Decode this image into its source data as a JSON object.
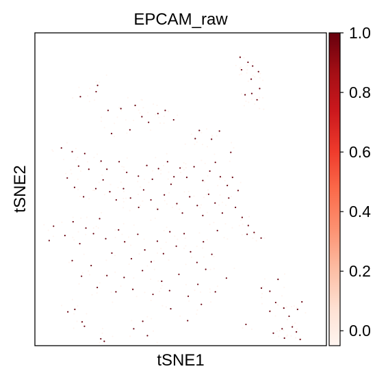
{
  "chart_data": {
    "type": "scatter",
    "title": "EPCAM_raw",
    "xlabel": "tSNE1",
    "ylabel": "tSNE2",
    "xlim": [
      0,
      100
    ],
    "ylim": [
      0,
      100
    ],
    "xticks_shown": false,
    "yticks_shown": false,
    "grid": false,
    "colorbar": {
      "cmap": "Reds",
      "range": [
        -0.05,
        1.0
      ],
      "ticks": [
        0.0,
        0.2,
        0.4,
        0.6,
        0.8,
        1.0
      ],
      "tick_labels": [
        "0.0",
        "0.2",
        "0.4",
        "0.6",
        "0.8",
        "1.0"
      ],
      "position": "right"
    },
    "low_value_color": "#fff5f0",
    "high_value_color": "#67000d",
    "expressing_cells": {
      "value": 1.0,
      "points": [
        [
          70.4,
          92.2
        ],
        [
          73.1,
          90.6
        ],
        [
          70.9,
          88.2
        ],
        [
          74.7,
          89.4
        ],
        [
          76.7,
          87.6
        ],
        [
          74.2,
          85.2
        ],
        [
          77.1,
          82.2
        ],
        [
          74.4,
          80.6
        ],
        [
          72.1,
          80.2
        ],
        [
          76.2,
          78.6
        ],
        [
          21.0,
          81.2
        ],
        [
          21.5,
          83.2
        ],
        [
          15.6,
          79.6
        ],
        [
          25.1,
          75.2
        ],
        [
          29.5,
          75.8
        ],
        [
          34.4,
          76.8
        ],
        [
          36.7,
          73.2
        ],
        [
          44.7,
          75.2
        ],
        [
          42.2,
          74.2
        ],
        [
          26.3,
          67.8
        ],
        [
          32.6,
          69.0
        ],
        [
          39.0,
          71.4
        ],
        [
          47.6,
          72.2
        ],
        [
          55.0,
          66.2
        ],
        [
          56.4,
          68.8
        ],
        [
          60.6,
          66.0
        ],
        [
          63.3,
          68.6
        ],
        [
          67.2,
          61.8
        ],
        [
          9.1,
          63.2
        ],
        [
          12.8,
          62.0
        ],
        [
          17.1,
          61.4
        ],
        [
          15.0,
          57.4
        ],
        [
          18.5,
          56.4
        ],
        [
          22.7,
          59.0
        ],
        [
          24.7,
          56.4
        ],
        [
          28.9,
          58.8
        ],
        [
          31.5,
          55.4
        ],
        [
          35.5,
          54.2
        ],
        [
          38.4,
          57.6
        ],
        [
          42.4,
          56.6
        ],
        [
          45.5,
          58.8
        ],
        [
          40.3,
          53.2
        ],
        [
          47.7,
          54.0
        ],
        [
          49.8,
          56.8
        ],
        [
          52.1,
          53.8
        ],
        [
          54.6,
          57.2
        ],
        [
          57.6,
          52.8
        ],
        [
          60.0,
          55.8
        ],
        [
          61.9,
          58.6
        ],
        [
          63.6,
          54.0
        ],
        [
          66.0,
          51.2
        ],
        [
          67.8,
          53.8
        ],
        [
          69.7,
          49.6
        ],
        [
          11.1,
          53.6
        ],
        [
          13.6,
          50.6
        ],
        [
          16.7,
          47.6
        ],
        [
          20.9,
          50.2
        ],
        [
          23.4,
          53.0
        ],
        [
          25.7,
          49.2
        ],
        [
          27.9,
          46.6
        ],
        [
          30.4,
          50.2
        ],
        [
          32.8,
          47.2
        ],
        [
          35.6,
          44.2
        ],
        [
          37.3,
          49.8
        ],
        [
          39.8,
          46.6
        ],
        [
          42.1,
          43.6
        ],
        [
          44.4,
          48.2
        ],
        [
          46.7,
          51.6
        ],
        [
          48.7,
          45.4
        ],
        [
          50.6,
          42.4
        ],
        [
          53.1,
          47.6
        ],
        [
          55.7,
          44.8
        ],
        [
          57.6,
          41.6
        ],
        [
          59.6,
          48.4
        ],
        [
          61.8,
          45.6
        ],
        [
          64.3,
          42.4
        ],
        [
          66.5,
          47.2
        ],
        [
          68.8,
          44.2
        ],
        [
          71.1,
          41.0
        ],
        [
          73.2,
          38.4
        ],
        [
          75.2,
          36.2
        ],
        [
          72.8,
          35.6
        ],
        [
          77.6,
          34.4
        ],
        [
          6.4,
          38.2
        ],
        [
          4.9,
          33.6
        ],
        [
          10.3,
          35.2
        ],
        [
          13.1,
          39.6
        ],
        [
          15.4,
          32.6
        ],
        [
          17.5,
          37.6
        ],
        [
          20.1,
          35.8
        ],
        [
          22.2,
          40.6
        ],
        [
          24.3,
          34.2
        ],
        [
          26.4,
          29.6
        ],
        [
          28.7,
          37.0
        ],
        [
          30.8,
          33.2
        ],
        [
          33.1,
          27.8
        ],
        [
          35.3,
          35.6
        ],
        [
          37.7,
          30.6
        ],
        [
          39.9,
          26.8
        ],
        [
          42.0,
          33.4
        ],
        [
          44.1,
          29.4
        ],
        [
          46.3,
          36.4
        ],
        [
          48.5,
          31.8
        ],
        [
          51.2,
          35.8
        ],
        [
          53.4,
          30.0
        ],
        [
          55.6,
          26.6
        ],
        [
          57.8,
          33.2
        ],
        [
          60.7,
          29.2
        ],
        [
          62.6,
          36.8
        ],
        [
          12.8,
          27.2
        ],
        [
          16.0,
          22.2
        ],
        [
          19.3,
          25.6
        ],
        [
          21.4,
          18.6
        ],
        [
          24.7,
          22.4
        ],
        [
          27.8,
          17.2
        ],
        [
          30.6,
          21.8
        ],
        [
          33.6,
          18.0
        ],
        [
          36.9,
          24.0
        ],
        [
          40.5,
          16.4
        ],
        [
          43.5,
          20.6
        ],
        [
          46.2,
          17.6
        ],
        [
          49.4,
          22.8
        ],
        [
          52.6,
          15.8
        ],
        [
          55.9,
          19.6
        ],
        [
          58.6,
          24.4
        ],
        [
          61.9,
          17.2
        ],
        [
          65.7,
          21.6
        ],
        [
          13.7,
          11.6
        ],
        [
          11.3,
          10.8
        ],
        [
          16.2,
          7.6
        ],
        [
          17.0,
          6.2
        ],
        [
          22.6,
          2.2
        ],
        [
          23.8,
          1.4
        ],
        [
          33.9,
          5.4
        ],
        [
          37.0,
          7.8
        ],
        [
          38.6,
          3.2
        ],
        [
          46.6,
          11.8
        ],
        [
          52.4,
          8.0
        ],
        [
          57.1,
          13.2
        ],
        [
          72.4,
          6.8
        ],
        [
          77.7,
          18.4
        ],
        [
          80.6,
          17.4
        ],
        [
          83.4,
          21.2
        ],
        [
          80.6,
          11.0
        ],
        [
          82.6,
          13.8
        ],
        [
          85.4,
          12.0
        ],
        [
          87.2,
          9.4
        ],
        [
          84.8,
          5.4
        ],
        [
          85.6,
          2.4
        ],
        [
          88.3,
          6.0
        ],
        [
          90.1,
          11.6
        ],
        [
          91.6,
          14.0
        ],
        [
          89.7,
          4.4
        ],
        [
          91.0,
          2.0
        ],
        [
          81.8,
          4.0
        ]
      ]
    },
    "non_expressing_cells": {
      "value": 0.0,
      "count": 340
    }
  }
}
